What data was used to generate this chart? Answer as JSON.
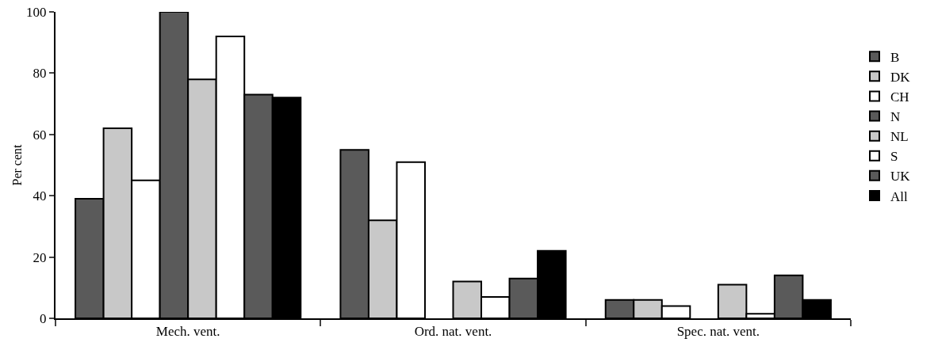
{
  "chart_data": {
    "type": "bar",
    "ylabel": "Per cent",
    "categories": [
      "Mech. vent.",
      "Ord. nat. vent.",
      "Spec. nat. vent."
    ],
    "series": [
      {
        "name": "B",
        "color": "#5a5a5a",
        "values": [
          39,
          55,
          6
        ]
      },
      {
        "name": "DK",
        "color": "#c8c8c8",
        "values": [
          62,
          32,
          6
        ]
      },
      {
        "name": "CH",
        "color": "#ffffff",
        "values": [
          45,
          51,
          4
        ]
      },
      {
        "name": "N",
        "color": "#5a5a5a",
        "values": [
          100,
          0,
          0
        ]
      },
      {
        "name": "NL",
        "color": "#c8c8c8",
        "values": [
          78,
          12,
          11
        ]
      },
      {
        "name": "S",
        "color": "#ffffff",
        "values": [
          92,
          7,
          1.5
        ]
      },
      {
        "name": "UK",
        "color": "#5a5a5a",
        "values": [
          73,
          13,
          14
        ]
      },
      {
        "name": "All",
        "color": "#000000",
        "values": [
          72,
          22,
          6
        ]
      }
    ],
    "ylim": [
      0,
      100
    ],
    "yticks": [
      0,
      20,
      40,
      60,
      80,
      100
    ],
    "grid": false,
    "legend": "right"
  }
}
